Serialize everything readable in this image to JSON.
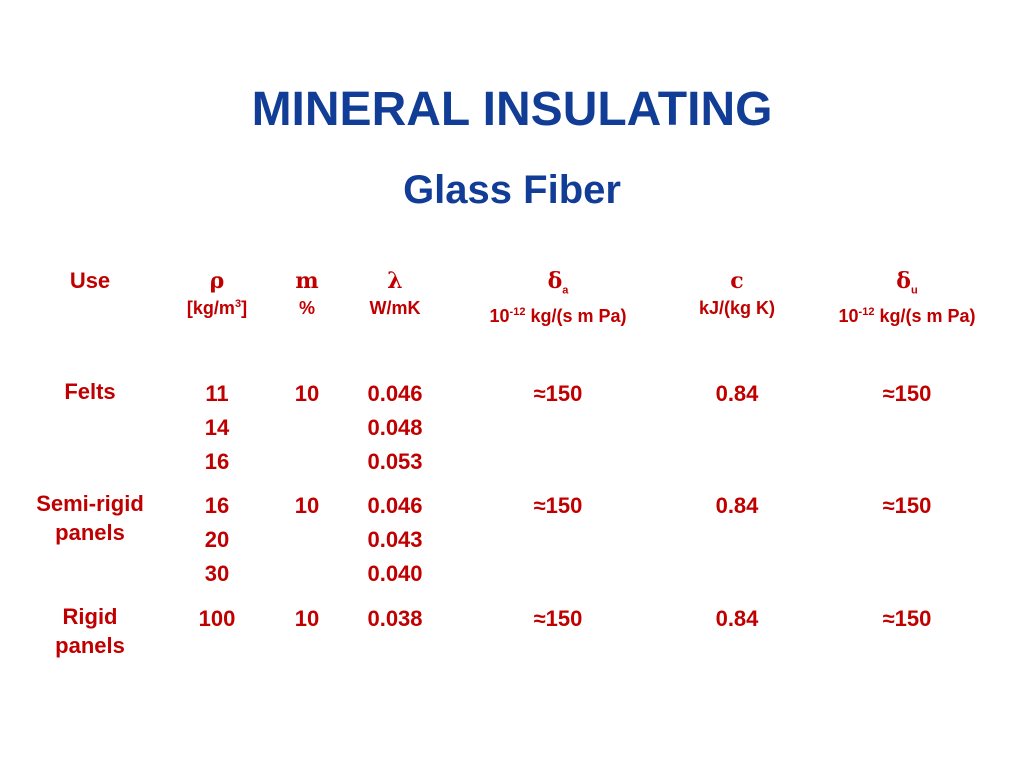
{
  "title": "MINERAL INSULATING",
  "subtitle": "Glass Fiber",
  "table": {
    "headers": [
      {
        "symbol": "Use"
      },
      {
        "symbol": "ρ",
        "unit_prefix": "[kg/m",
        "unit_sup": "3",
        "unit_suffix": "]"
      },
      {
        "symbol": "m",
        "unit_prefix": "%"
      },
      {
        "symbol": "λ",
        "unit_prefix": "W/mK"
      },
      {
        "symbol": "δ",
        "symbol_sub": "a",
        "unit_prefix": "10",
        "unit_sup": "-12",
        "unit_suffix": "kg/(s m Pa)"
      },
      {
        "symbol": "c",
        "unit_prefix": "kJ/(kg K)"
      },
      {
        "symbol": "δ",
        "symbol_sub": "u",
        "unit_prefix": "10",
        "unit_sup": "-12",
        "unit_suffix": "kg/(s m Pa)"
      }
    ],
    "rows": [
      [
        [
          "Felts"
        ],
        [
          "11",
          "14",
          "16"
        ],
        [
          "10"
        ],
        [
          "0.046",
          "0.048",
          "0.053"
        ],
        [
          "≈150"
        ],
        [
          "0.84"
        ],
        [
          "≈150"
        ]
      ],
      [
        [
          "Semi-rigid",
          "panels"
        ],
        [
          "16",
          "20",
          "30"
        ],
        [
          "10"
        ],
        [
          "0.046",
          "0.043",
          "0.040"
        ],
        [
          "≈150"
        ],
        [
          "0.84"
        ],
        [
          "≈150"
        ]
      ],
      [
        [
          "Rigid",
          "panels"
        ],
        [
          "100"
        ],
        [
          "10"
        ],
        [
          "0.038"
        ],
        [
          "≈150"
        ],
        [
          "0.84"
        ],
        [
          "≈150"
        ]
      ]
    ]
  }
}
